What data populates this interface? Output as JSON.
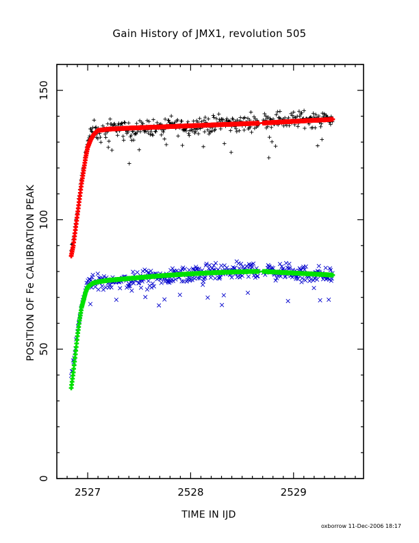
{
  "chart_data": {
    "type": "scatter",
    "title": "Gain History of JMX1, revolution 505",
    "xlabel": "TIME IN IJD",
    "ylabel": "POSITION OF Fe CALIBRATION PEAK",
    "xlim": [
      2526.7,
      2529.68
    ],
    "ylim": [
      0,
      160
    ],
    "xticks": [
      2527,
      2528,
      2529
    ],
    "yticks": [
      0,
      50,
      100,
      150
    ],
    "grid": false,
    "gap": [
      2528.66,
      2528.7
    ],
    "series": [
      {
        "marker": "plus",
        "color": "#000000",
        "kind": "measured",
        "points": [
          [
            2526.84,
            88
          ],
          [
            2526.86,
            92
          ],
          [
            2526.88,
            98
          ],
          [
            2526.9,
            103
          ],
          [
            2526.92,
            110
          ],
          [
            2526.94,
            117
          ],
          [
            2526.96,
            121
          ],
          [
            2526.98,
            126
          ],
          [
            2527.0,
            130
          ],
          [
            2527.03,
            133
          ],
          [
            2527.06,
            135
          ],
          [
            2527.1,
            133
          ],
          [
            2527.2,
            135
          ],
          [
            2527.3,
            136
          ],
          [
            2527.4,
            134
          ],
          [
            2527.5,
            135
          ],
          [
            2527.6,
            136
          ],
          [
            2527.7,
            135
          ],
          [
            2527.8,
            137
          ],
          [
            2527.9,
            136
          ],
          [
            2528.0,
            136
          ],
          [
            2528.1,
            137
          ],
          [
            2528.2,
            136
          ],
          [
            2528.3,
            138
          ],
          [
            2528.4,
            137
          ],
          [
            2528.5,
            137
          ],
          [
            2528.6,
            138
          ],
          [
            2528.75,
            138
          ],
          [
            2528.85,
            139
          ],
          [
            2528.95,
            138
          ],
          [
            2529.05,
            139
          ],
          [
            2529.15,
            139
          ],
          [
            2529.25,
            139
          ],
          [
            2529.38,
            139
          ]
        ]
      },
      {
        "marker": "plus",
        "color": "#ff0000",
        "kind": "fit",
        "points": [
          [
            2526.84,
            86
          ],
          [
            2526.86,
            90
          ],
          [
            2526.88,
            96
          ],
          [
            2526.9,
            102
          ],
          [
            2526.92,
            108
          ],
          [
            2526.94,
            114
          ],
          [
            2526.96,
            119
          ],
          [
            2526.98,
            124
          ],
          [
            2527.0,
            128
          ],
          [
            2527.03,
            131
          ],
          [
            2527.06,
            133
          ],
          [
            2527.1,
            134.5
          ],
          [
            2527.2,
            135
          ],
          [
            2527.4,
            135.4
          ],
          [
            2527.6,
            135.7
          ],
          [
            2527.8,
            136.0
          ],
          [
            2528.0,
            136.3
          ],
          [
            2528.2,
            136.6
          ],
          [
            2528.4,
            136.9
          ],
          [
            2528.6,
            137.2
          ],
          [
            2528.72,
            137.4
          ],
          [
            2528.9,
            137.8
          ],
          [
            2529.1,
            138.2
          ],
          [
            2529.3,
            138.6
          ],
          [
            2529.38,
            138.8
          ]
        ]
      },
      {
        "marker": "x",
        "color": "#0000cc",
        "kind": "measured",
        "points": [
          [
            2526.84,
            40
          ],
          [
            2526.86,
            45
          ],
          [
            2526.88,
            50
          ],
          [
            2526.9,
            56
          ],
          [
            2526.92,
            62
          ],
          [
            2526.94,
            66
          ],
          [
            2526.96,
            70
          ],
          [
            2526.98,
            73
          ],
          [
            2527.0,
            76
          ],
          [
            2527.05,
            77
          ],
          [
            2527.1,
            76
          ],
          [
            2527.2,
            76
          ],
          [
            2527.3,
            77
          ],
          [
            2527.4,
            76
          ],
          [
            2527.5,
            77
          ],
          [
            2527.6,
            78
          ],
          [
            2527.7,
            77
          ],
          [
            2527.8,
            78
          ],
          [
            2527.9,
            79
          ],
          [
            2528.0,
            78
          ],
          [
            2528.1,
            79
          ],
          [
            2528.2,
            80
          ],
          [
            2528.3,
            79
          ],
          [
            2528.4,
            80
          ],
          [
            2528.5,
            80
          ],
          [
            2528.6,
            81
          ],
          [
            2528.75,
            80
          ],
          [
            2528.85,
            80
          ],
          [
            2528.95,
            80
          ],
          [
            2529.05,
            79
          ],
          [
            2529.15,
            79
          ],
          [
            2529.25,
            79
          ],
          [
            2529.38,
            78
          ]
        ]
      },
      {
        "marker": "plus",
        "color": "#00e000",
        "kind": "fit",
        "points": [
          [
            2526.84,
            35
          ],
          [
            2526.86,
            41
          ],
          [
            2526.88,
            48
          ],
          [
            2526.9,
            55
          ],
          [
            2526.92,
            61
          ],
          [
            2526.94,
            66
          ],
          [
            2526.96,
            69
          ],
          [
            2526.98,
            72
          ],
          [
            2527.0,
            74
          ],
          [
            2527.05,
            75.5
          ],
          [
            2527.1,
            76
          ],
          [
            2527.2,
            76.6
          ],
          [
            2527.4,
            77.3
          ],
          [
            2527.6,
            78
          ],
          [
            2527.8,
            78.6
          ],
          [
            2528.0,
            79.1
          ],
          [
            2528.2,
            79.5
          ],
          [
            2528.4,
            79.8
          ],
          [
            2528.6,
            80
          ],
          [
            2528.72,
            80
          ],
          [
            2528.9,
            79.6
          ],
          [
            2529.1,
            79.2
          ],
          [
            2529.3,
            78.8
          ],
          [
            2529.38,
            78.6
          ]
        ]
      }
    ]
  },
  "footer": "oxborrow 11-Dec-2006 18:17"
}
